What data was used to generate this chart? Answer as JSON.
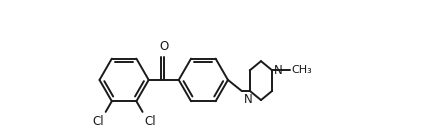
{
  "bg_color": "#ffffff",
  "line_color": "#1a1a1a",
  "lw": 1.4,
  "font_size": 8.5,
  "figsize": [
    4.34,
    1.38
  ],
  "dpi": 100,
  "xlim": [
    -0.5,
    9.5
  ],
  "ylim": [
    -1.8,
    3.2
  ]
}
